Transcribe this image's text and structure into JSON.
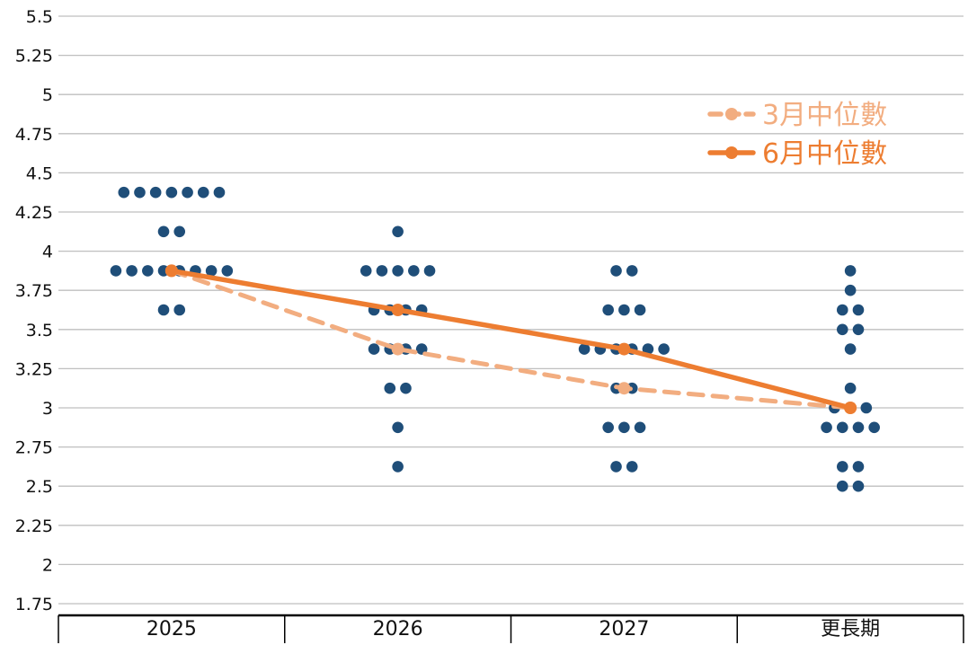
{
  "chart_data": {
    "type": "scatter",
    "categories": [
      "2025",
      "2026",
      "2027",
      "更長期"
    ],
    "ylim": [
      1.75,
      5.5
    ],
    "yticks": [
      "1.75",
      "2",
      "2.25",
      "2.5",
      "2.75",
      "3",
      "3.25",
      "3.5",
      "3.75",
      "4",
      "4.25",
      "4.5",
      "4.75",
      "5",
      "5.25",
      "5.5"
    ],
    "grid": true,
    "legend_position": "top-right",
    "dots": [
      {
        "category": "2025",
        "rates": [
          {
            "y": 4.375,
            "count": 7
          },
          {
            "y": 4.125,
            "count": 2
          },
          {
            "y": 3.875,
            "count": 8
          },
          {
            "y": 3.625,
            "count": 2
          }
        ]
      },
      {
        "category": "2026",
        "rates": [
          {
            "y": 4.125,
            "count": 1
          },
          {
            "y": 3.875,
            "count": 5
          },
          {
            "y": 3.625,
            "count": 4
          },
          {
            "y": 3.375,
            "count": 4
          },
          {
            "y": 3.125,
            "count": 2
          },
          {
            "y": 2.875,
            "count": 1
          },
          {
            "y": 2.625,
            "count": 1
          }
        ]
      },
      {
        "category": "2027",
        "rates": [
          {
            "y": 3.875,
            "count": 2
          },
          {
            "y": 3.625,
            "count": 3
          },
          {
            "y": 3.375,
            "count": 6
          },
          {
            "y": 3.125,
            "count": 2
          },
          {
            "y": 2.875,
            "count": 3
          },
          {
            "y": 2.625,
            "count": 2
          }
        ]
      },
      {
        "category": "更長期",
        "rates": [
          {
            "y": 3.875,
            "count": 1
          },
          {
            "y": 3.75,
            "count": 1
          },
          {
            "y": 3.625,
            "count": 2
          },
          {
            "y": 3.5,
            "count": 2
          },
          {
            "y": 3.375,
            "count": 1
          },
          {
            "y": 3.125,
            "count": 1
          },
          {
            "y": 3.0,
            "count": 3
          },
          {
            "y": 2.875,
            "count": 4
          },
          {
            "y": 2.625,
            "count": 2
          },
          {
            "y": 2.5,
            "count": 2
          }
        ]
      }
    ],
    "series": [
      {
        "name": "3月中位數",
        "style": "dashed",
        "color": "#f2ad80",
        "values": [
          3.875,
          3.375,
          3.125,
          3.0
        ]
      },
      {
        "name": "6月中位數",
        "style": "solid",
        "color": "#ed7d31",
        "values": [
          3.875,
          3.625,
          3.375,
          3.0
        ]
      }
    ],
    "colors": {
      "dot": "#1f4e79",
      "grid": "#bfbfbf",
      "axis": "#000000"
    }
  }
}
